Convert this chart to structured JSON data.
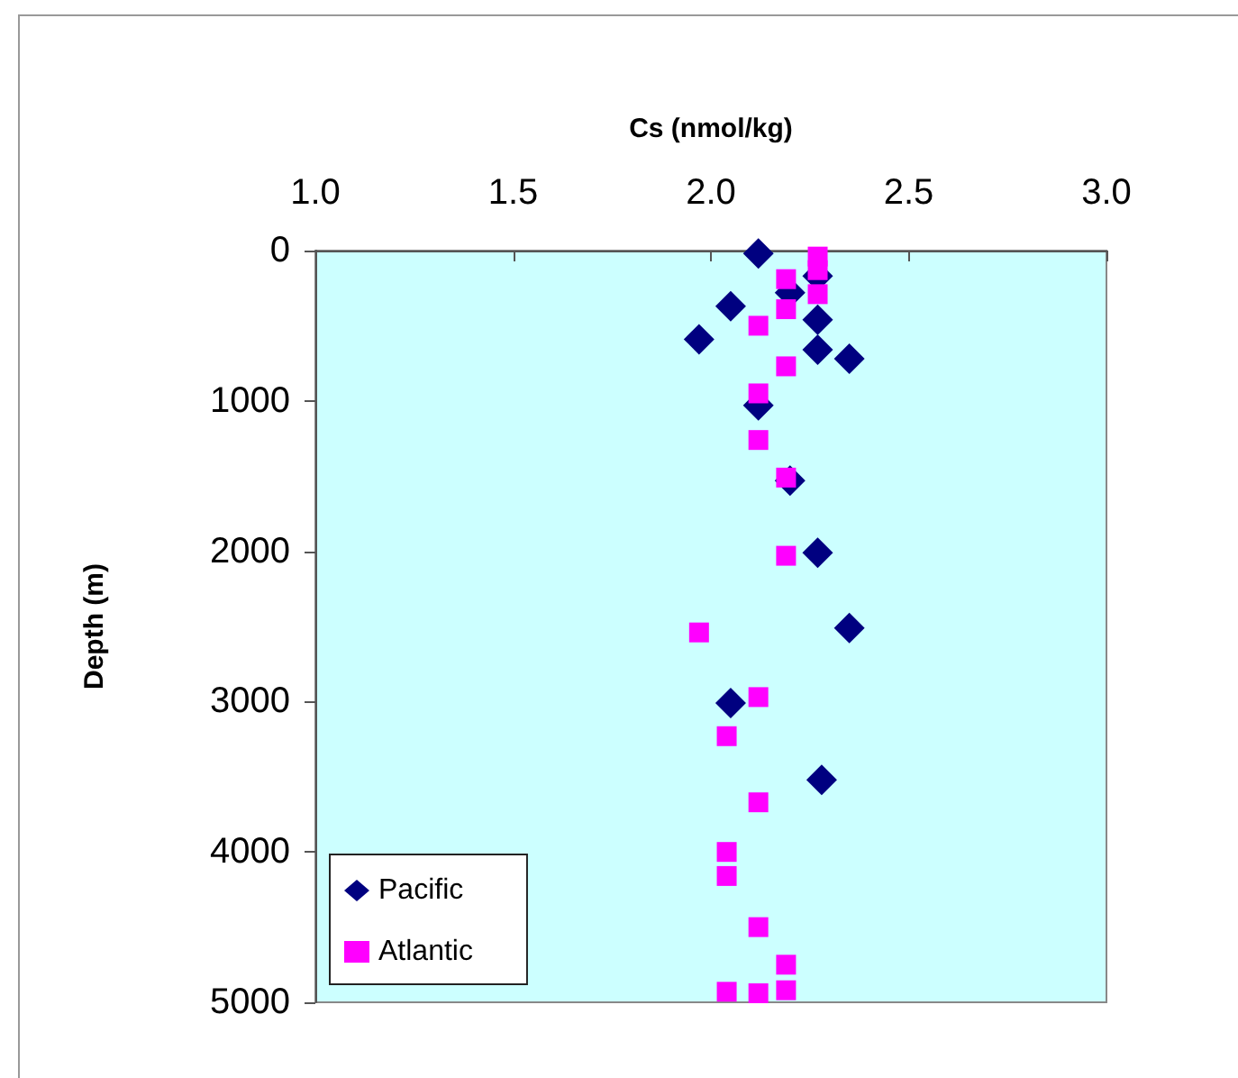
{
  "chart_data": {
    "type": "scatter",
    "xlabel": "Cs (nmol/kg)",
    "ylabel": "Depth (m)",
    "xlim": [
      1.0,
      3.0
    ],
    "xticks": [
      {
        "value": 1.0,
        "label": "1.0"
      },
      {
        "value": 1.5,
        "label": "1.5"
      },
      {
        "value": 2.0,
        "label": "2.0"
      },
      {
        "value": 2.5,
        "label": "2.5"
      },
      {
        "value": 3.0,
        "label": "3.0"
      }
    ],
    "ylim": [
      5000,
      0
    ],
    "yticks": [
      0,
      1000,
      2000,
      3000,
      4000,
      5000
    ],
    "grid": false,
    "legend": "bottom left",
    "series": [
      {
        "name": "Pacific",
        "color": "#000080",
        "marker": "diamond",
        "x": [
          2.12,
          2.2,
          2.27,
          2.05,
          2.27,
          1.97,
          2.27,
          2.35,
          2.12,
          2.2,
          2.27,
          2.35,
          2.05,
          2.28
        ],
        "values": [
          20,
          280,
          170,
          370,
          460,
          590,
          660,
          720,
          1030,
          1530,
          2010,
          2510,
          3010,
          3520
        ]
      },
      {
        "name": "Atlantic",
        "color": "#ff00ff",
        "marker": "square",
        "x": [
          2.27,
          2.27,
          2.27,
          2.19,
          2.19,
          2.12,
          2.19,
          2.12,
          2.12,
          2.19,
          2.19,
          1.97,
          2.12,
          2.04,
          2.12,
          2.04,
          2.04,
          2.12,
          2.19,
          2.19,
          2.04,
          2.12
        ],
        "values": [
          40,
          130,
          290,
          190,
          390,
          500,
          770,
          950,
          1260,
          1510,
          2030,
          2540,
          2970,
          3230,
          3670,
          4000,
          4160,
          4500,
          4750,
          4920,
          4930,
          4940
        ]
      }
    ]
  }
}
